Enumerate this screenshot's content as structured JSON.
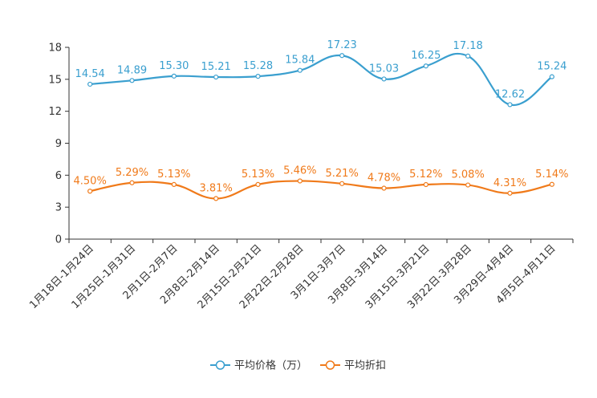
{
  "chart_data": {
    "type": "line",
    "categories": [
      "1月18日-1月24日",
      "1月25日-1月31日",
      "2月1日-2月7日",
      "2月8日-2月14日",
      "2月15日-2月21日",
      "2月22日-2月28日",
      "3月1日-3月7日",
      "3月8日-3月14日",
      "3月15日-3月21日",
      "3月22日-3月28日",
      "3月29日-4月4日",
      "4月5日-4月11日"
    ],
    "ylim": [
      0,
      18
    ],
    "yticks": [
      "0",
      "3",
      "6",
      "9",
      "12",
      "15",
      "18"
    ],
    "series": [
      {
        "name": "平均价格（万）",
        "color": "#3a9fcf",
        "values": [
          14.54,
          14.89,
          15.3,
          15.21,
          15.28,
          15.84,
          17.23,
          15.03,
          16.25,
          17.18,
          12.62,
          15.24
        ],
        "labels": [
          "14.54",
          "14.89",
          "15.30",
          "15.21",
          "15.28",
          "15.84",
          "17.23",
          "15.03",
          "16.25",
          "17.18",
          "12.62",
          "15.24"
        ]
      },
      {
        "name": "平均折扣",
        "color": "#f07a1a",
        "values": [
          4.5,
          5.29,
          5.13,
          3.81,
          5.13,
          5.46,
          5.21,
          4.78,
          5.12,
          5.08,
          4.31,
          5.14
        ],
        "labels": [
          "4.50%",
          "5.29%",
          "5.13%",
          "3.81%",
          "5.13%",
          "5.46%",
          "5.21%",
          "4.78%",
          "5.12%",
          "5.08%",
          "4.31%",
          "5.14%"
        ]
      }
    ],
    "legend": [
      "平均价格（万）",
      "平均折扣"
    ],
    "legend_position": "bottom-center"
  }
}
